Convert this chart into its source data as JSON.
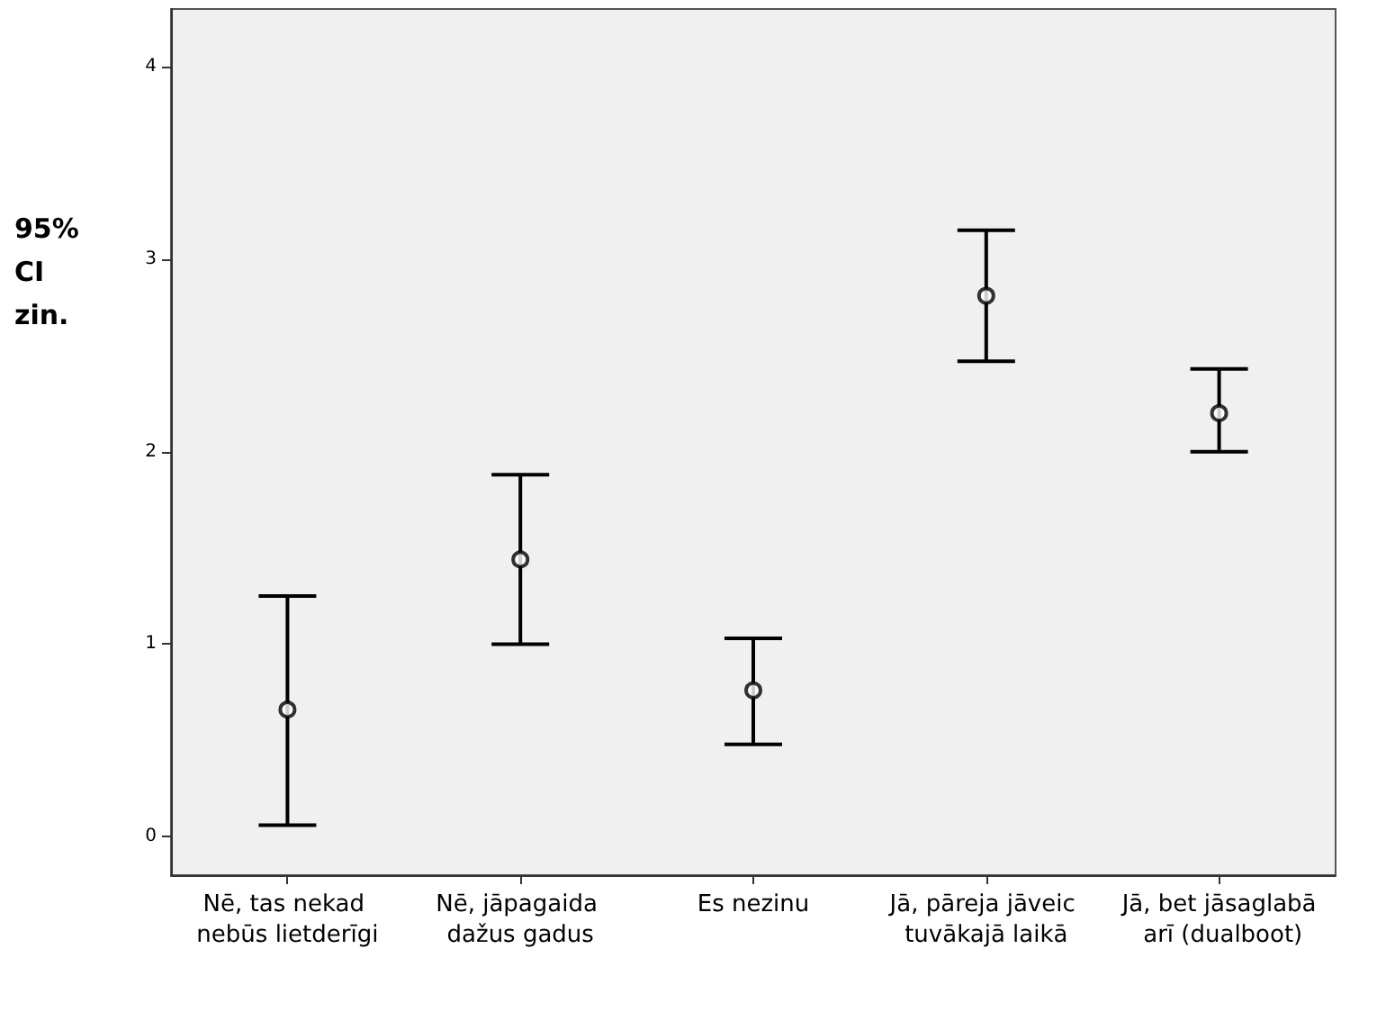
{
  "chart_data": {
    "type": "scatter",
    "ylabel": "95% CI zin.",
    "categories": [
      "Nē, tas nekad nebūs lietderīgi",
      "Nē, jāpagaida dažus gadus",
      "Es nezinu",
      "Jā, pāreja jāveic tuvākajā laikā",
      "Jā, bet jāsaglabā arī (dualboot)"
    ],
    "series": [
      {
        "color": "#000000",
        "values": [
          0.66,
          1.44,
          0.76,
          2.81,
          2.2
        ],
        "errors": [
          [
            0.06,
            1.25
          ],
          [
            1.0,
            1.88
          ],
          [
            0.48,
            1.03
          ],
          [
            2.47,
            3.15
          ],
          [
            2.0,
            2.43
          ]
        ]
      }
    ],
    "ylim": [
      -0.2,
      4.3
    ],
    "yticks": [
      0,
      1,
      2,
      3,
      4
    ],
    "grid": false,
    "marker": "circle"
  }
}
